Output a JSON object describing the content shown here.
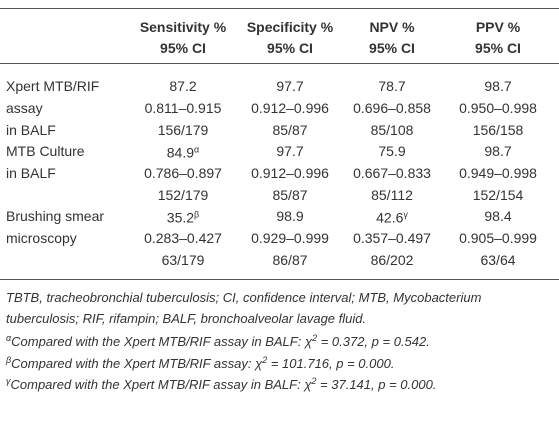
{
  "header": {
    "columns": [
      {
        "name": "Sensitivity %",
        "sub": "95% CI"
      },
      {
        "name": "Specificity %",
        "sub": "95% CI"
      },
      {
        "name": "NPV %",
        "sub": "95% CI"
      },
      {
        "name": "PPV %",
        "sub": "95% CI"
      }
    ]
  },
  "table": {
    "groups": [
      {
        "label": [
          "Xpert MTB/RIF",
          "assay",
          "in BALF"
        ],
        "cells": [
          [
            "87.2",
            "0.811–0.915",
            "156/179"
          ],
          [
            "97.7",
            "0.912–0.996",
            "85/87"
          ],
          [
            "78.7",
            "0.696–0.858",
            "85/108"
          ],
          [
            "98.7",
            "0.950–0.998",
            "156/158"
          ]
        ]
      },
      {
        "label": [
          "MTB Culture",
          "in BALF"
        ],
        "cells": [
          [
            {
              "text": "84.9",
              "sup": "α"
            },
            "0.786–0.897",
            "152/179"
          ],
          [
            "97.7",
            "0.912–0.996",
            "85/87"
          ],
          [
            "75.9",
            "0.667–0.833",
            "85/112"
          ],
          [
            "98.7",
            "0.949–0.998",
            "152/154"
          ]
        ]
      },
      {
        "label": [
          "Brushing smear",
          "microscopy"
        ],
        "cells": [
          [
            {
              "text": "35.2",
              "sup": "β"
            },
            "0.283–0.427",
            "63/179"
          ],
          [
            "98.9",
            "0.929–0.999",
            "86/87"
          ],
          [
            {
              "text": "42.6",
              "sup": "γ"
            },
            "0.357–0.497",
            "86/202"
          ],
          [
            "98.4",
            "0.905–0.999",
            "63/64"
          ]
        ]
      }
    ]
  },
  "footnotes": {
    "abbreviations": [
      "TBTB, tracheobronchial tuberculosis; CI, confidence interval; MTB, Mycobacterium",
      "tuberculosis; RIF, rifampin; BALF, bronchoalveolar lavage fluid."
    ],
    "notes": [
      {
        "mark": "α",
        "text": "Compared with the Xpert MTB/RIF assay in BALF: χ",
        "exp": "2",
        "rest": " = 0.372, p = 0.542."
      },
      {
        "mark": "β",
        "text": "Compared with the Xpert MTB/RIF assay: χ",
        "exp": "2",
        "rest": " = 101.716, p = 0.000."
      },
      {
        "mark": "γ",
        "text": "Compared with the Xpert MTB/RIF assay in BALF: χ",
        "exp": "2",
        "rest": " = 37.141, p = 0.000."
      }
    ]
  }
}
